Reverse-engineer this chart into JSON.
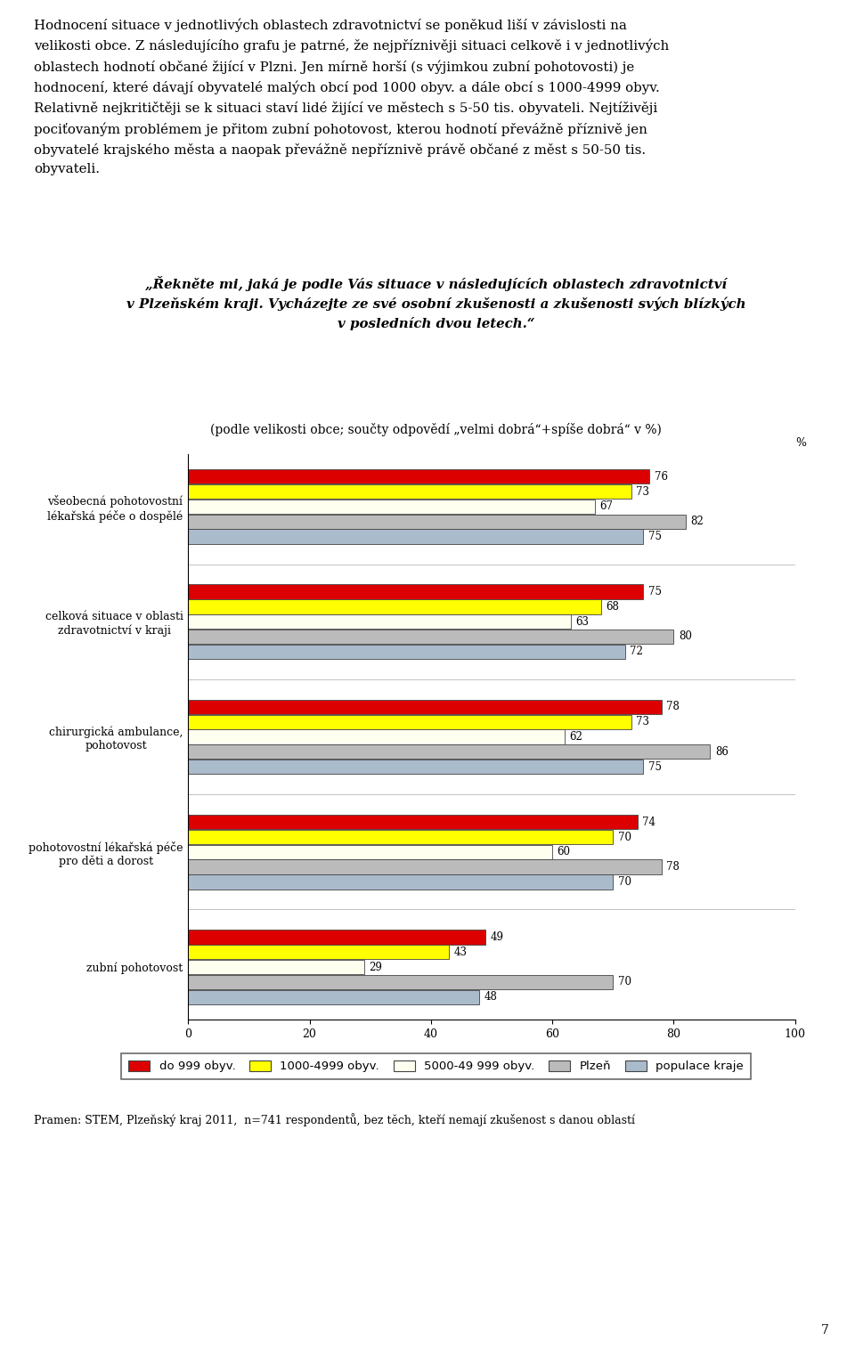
{
  "paragraph_text_lines": [
    "Hodnocení situace v jednotlivých oblastech zdravotnictví se poněkud liší v závislosti na",
    "velikosti obce. Z následujícího grafu je patrné, že nejpříznivěji situaci celkově i v jednotlivých",
    "oblastech hodnotí občané žijící v Plzni. Jen mírně horší (s výjimkou zubní pohotovosti) je",
    "hodnocení, které dávají obyvatelé malých obcí pod 1000 obyv. a dále obcí s 1000-4999 obyv.",
    "Relativně nejkritičtěji se k situaci staví lidé žijící ve městech s 5-50 tis. obyvateli. Nejtíživěji",
    "pociťovaným problémem je přitom zubní pohotovost, kterou hodnotí převážně příznivě jen",
    "obyvatelé krajského města a naopak převážně nepříznivě právě občané z měst s 50-50 tis.",
    "obyvateli."
  ],
  "question_line1": "„Řekněte mi, jaká je podle Vás situace v následujících oblastech zdravotnictví",
  "question_line2": "v Plzeňském kraji. Vycházejte ze své osobní zkušenosti a zkušenosti svých blízkých",
  "question_line3": "v posledních dvou letech.“",
  "question_sub": "(podle velikosti obce; součty odpovědí „velmi dobrá“+spíše dobrá“ v %)",
  "footer": "Pramen: STEM, Plzeňský kraj 2011,  n=741 respondentů, bez těch, kteří nemají zkušenost s danou oblastí",
  "page_number": "7",
  "categories": [
    "všeobecná pohotovostní\nlékařská péče o dospělé",
    "celková situace v oblasti\nzdravotnictví v kraji",
    "chirurgická ambulance,\npohotovost",
    "pohotovostní lékařská péče\npro děti a dorost",
    "zubní pohotovost"
  ],
  "series_order": [
    "do 999 obyv.",
    "1000-4999 obyv.",
    "5000-49 999 obyv.",
    "Plzeň",
    "populace kraje"
  ],
  "series": {
    "do 999 obyv.": [
      76,
      75,
      78,
      74,
      49
    ],
    "1000-4999 obyv.": [
      73,
      68,
      73,
      70,
      43
    ],
    "5000-49 999 obyv.": [
      67,
      63,
      62,
      60,
      29
    ],
    "Plzeň": [
      82,
      80,
      86,
      78,
      70
    ],
    "populace kraje": [
      75,
      72,
      75,
      70,
      48
    ]
  },
  "colors": {
    "do 999 obyv.": "#dd0000",
    "1000-4999 obyv.": "#ffff00",
    "5000-49 999 obyv.": "#fffff0",
    "Plzeň": "#bbbbbb",
    "populace kraje": "#aabbcc"
  },
  "bar_edge_color": "#444444",
  "xlim": [
    0,
    100
  ],
  "xlabel": "%",
  "xticks": [
    0,
    20,
    40,
    60,
    80,
    100
  ]
}
